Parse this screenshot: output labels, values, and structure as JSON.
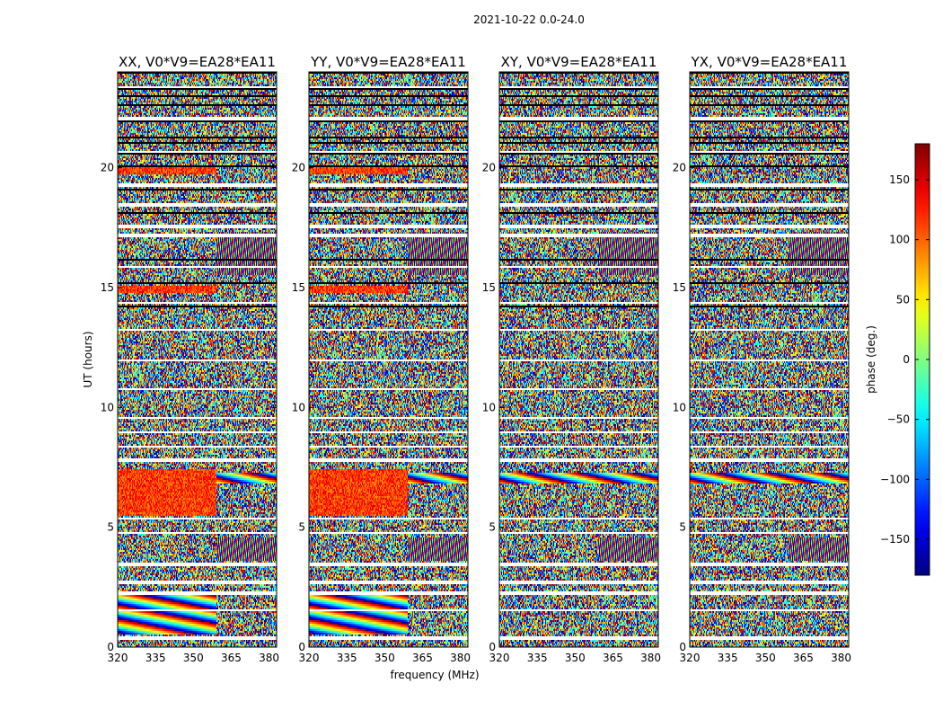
{
  "chart_data": {
    "type": "heatmap",
    "suptitle": "2021-10-22 0.0-24.0",
    "xlabel": "frequency (MHz)",
    "ylabel": "UT (hours)",
    "xlim": [
      320,
      383
    ],
    "ylim": [
      0,
      24
    ],
    "xticks": [
      320,
      335,
      350,
      365,
      380
    ],
    "yticks": [
      0,
      5,
      10,
      15,
      20
    ],
    "panels": [
      {
        "title": "XX, V0*V9=EA28*EA11",
        "style": "parallel"
      },
      {
        "title": "YY, V0*V9=EA28*EA11",
        "style": "parallel"
      },
      {
        "title": "XY, V0*V9=EA28*EA11",
        "style": "cross"
      },
      {
        "title": "YX, V0*V9=EA28*EA11",
        "style": "cross"
      }
    ],
    "colorbar": {
      "label": "phase (deg.)",
      "range": [
        -180,
        180
      ],
      "ticks": [
        150,
        100,
        50,
        0,
        -50,
        -100,
        -150
      ],
      "tick_labels": [
        "150",
        "100",
        "50",
        "0",
        "−50",
        "−100",
        "−150"
      ],
      "colormap": "jet"
    },
    "flagged_hours": [
      [
        0.3,
        0.45
      ],
      [
        1.5,
        1.6
      ],
      [
        2.2,
        2.35
      ],
      [
        2.6,
        2.75
      ],
      [
        3.4,
        3.55
      ],
      [
        4.7,
        4.8
      ],
      [
        5.3,
        5.42
      ],
      [
        7.7,
        7.85
      ],
      [
        8.3,
        8.4
      ],
      [
        8.9,
        9.0
      ],
      [
        9.5,
        9.6
      ],
      [
        10.7,
        10.8
      ],
      [
        11.9,
        12.0
      ],
      [
        13.2,
        13.3
      ],
      [
        14.3,
        14.4
      ],
      [
        15.8,
        15.9
      ],
      [
        17.1,
        17.25
      ],
      [
        17.5,
        17.6
      ],
      [
        18.4,
        18.5
      ],
      [
        19.2,
        19.35
      ],
      [
        20.6,
        20.7
      ],
      [
        22.0,
        22.1
      ],
      [
        23.3,
        23.4
      ]
    ]
  }
}
